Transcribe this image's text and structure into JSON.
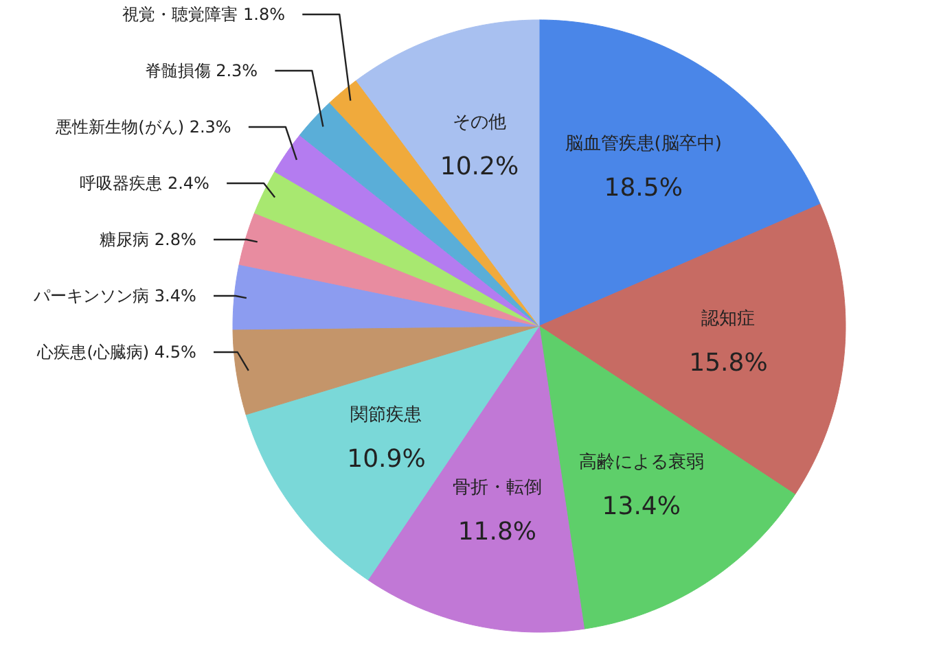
{
  "chart_data": {
    "type": "pie",
    "categories": [
      "脳血管疾患(脳卒中)",
      "認知症",
      "高齢による衰弱",
      "骨折・転倒",
      "関節疾患",
      "心疾患(心臓病)",
      "パーキンソン病",
      "糖尿病",
      "呼吸器疾患",
      "悪性新生物(がん)",
      "脊髄損傷",
      "視覚・聴覚障害",
      "その他"
    ],
    "values": [
      18.5,
      15.8,
      13.4,
      11.8,
      10.9,
      4.5,
      3.4,
      2.8,
      2.4,
      2.3,
      2.3,
      1.8,
      10.2
    ],
    "value_labels": [
      "18.5%",
      "15.8%",
      "13.4%",
      "11.8%",
      "10.9%",
      "4.5%",
      "3.4%",
      "2.8%",
      "2.4%",
      "2.3%",
      "2.3%",
      "1.8%",
      "10.2%"
    ],
    "colors": [
      "#4a86e8",
      "#c76b63",
      "#5ecf6a",
      "#c178d6",
      "#7ad8d8",
      "#c4956a",
      "#8c9cf0",
      "#e88ca0",
      "#a8e870",
      "#b47cf0",
      "#5aaed8",
      "#f0aa3c",
      "#a8c0f0"
    ]
  }
}
